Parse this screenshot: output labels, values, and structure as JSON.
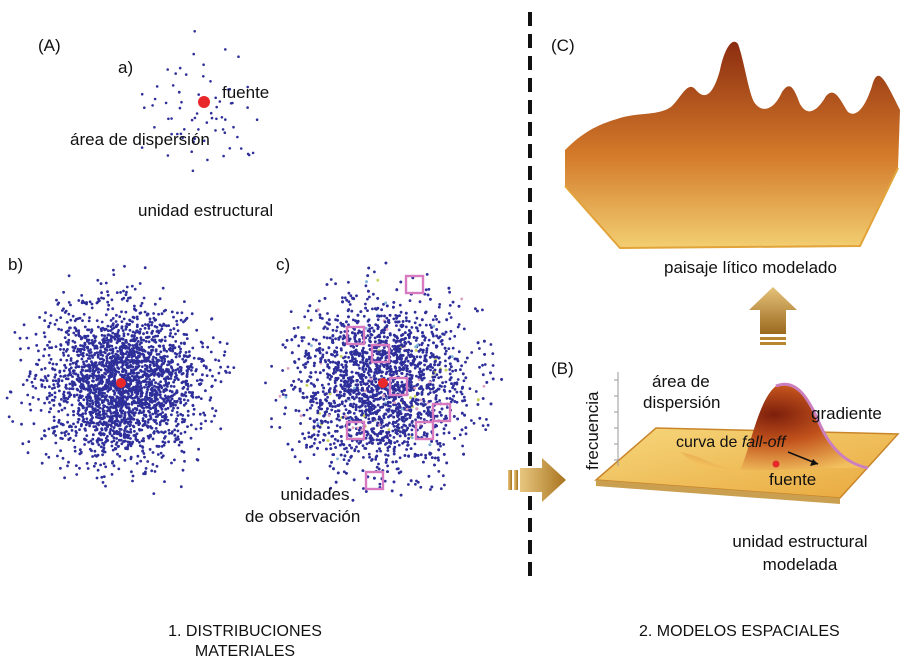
{
  "panel_A": {
    "tag": "(A)",
    "sub_a": "a)",
    "source": "fuente",
    "dispersion_area": "área de dispersión",
    "structural_unit": "unidad estructural",
    "sub_b": "b)",
    "sub_c": "c)",
    "observation_units_line1": "unidades",
    "observation_units_line2": "de observación"
  },
  "panel_B": {
    "tag": "(B)",
    "frequency": "frecuencia",
    "dispersion_line1": "área de",
    "dispersion_line2": "dispersión",
    "gradient": "gradiente",
    "falloff_prefix": "curva de ",
    "falloff_italic": "fall-off",
    "source": "fuente",
    "modeled_unit_line1": "unidad estructural",
    "modeled_unit_line2": "modelada"
  },
  "panel_C": {
    "tag": "(C)",
    "caption": "paisaje lítico modelado"
  },
  "footer": {
    "left_line1": "1. DISTRIBUCIONES",
    "left_line2": "MATERIALES",
    "right": "2. MODELOS ESPACIALES"
  },
  "colors": {
    "dots": "#2e2f9a",
    "source": "#e8282a",
    "squares": "#d77ac0",
    "arrow": "#b8862e",
    "surface_dark": "#8a2a10",
    "surface_light": "#f5d27a"
  }
}
